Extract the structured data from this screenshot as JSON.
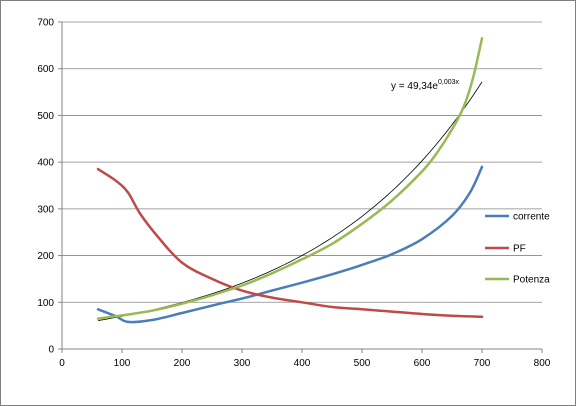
{
  "chart_data": {
    "type": "line",
    "title": "",
    "xlabel": "",
    "ylabel": "",
    "xlim": [
      0,
      800
    ],
    "ylim": [
      0,
      700
    ],
    "x_ticks": [
      "0",
      "100",
      "200",
      "300",
      "400",
      "500",
      "600",
      "700",
      "800"
    ],
    "y_ticks": [
      "0",
      "100",
      "200",
      "300",
      "400",
      "500",
      "600",
      "700"
    ],
    "grid": "horizontal",
    "legend_position": "right",
    "series": [
      {
        "name": "corrente",
        "color": "#4a7ebb",
        "points": [
          [
            60,
            85
          ],
          [
            90,
            70
          ],
          [
            110,
            58
          ],
          [
            150,
            62
          ],
          [
            200,
            77
          ],
          [
            250,
            93
          ],
          [
            300,
            108
          ],
          [
            350,
            125
          ],
          [
            400,
            142
          ],
          [
            450,
            160
          ],
          [
            500,
            180
          ],
          [
            550,
            203
          ],
          [
            600,
            235
          ],
          [
            650,
            285
          ],
          [
            680,
            335
          ],
          [
            700,
            390
          ]
        ]
      },
      {
        "name": "PF",
        "color": "#be4b48",
        "points": [
          [
            60,
            385
          ],
          [
            90,
            360
          ],
          [
            110,
            335
          ],
          [
            130,
            290
          ],
          [
            160,
            240
          ],
          [
            200,
            185
          ],
          [
            250,
            150
          ],
          [
            300,
            125
          ],
          [
            350,
            110
          ],
          [
            400,
            100
          ],
          [
            450,
            90
          ],
          [
            500,
            85
          ],
          [
            550,
            80
          ],
          [
            600,
            75
          ],
          [
            650,
            71
          ],
          [
            700,
            69
          ]
        ]
      },
      {
        "name": "Potenza",
        "color": "#98b954",
        "points": [
          [
            60,
            65
          ],
          [
            100,
            72
          ],
          [
            150,
            82
          ],
          [
            200,
            97
          ],
          [
            250,
            115
          ],
          [
            300,
            136
          ],
          [
            350,
            162
          ],
          [
            400,
            192
          ],
          [
            450,
            225
          ],
          [
            500,
            268
          ],
          [
            550,
            318
          ],
          [
            600,
            380
          ],
          [
            625,
            420
          ],
          [
            650,
            470
          ],
          [
            670,
            520
          ],
          [
            685,
            580
          ],
          [
            700,
            665
          ]
        ]
      }
    ],
    "trendline": {
      "series": "Potenza",
      "type": "exponential",
      "equation_text": "y = 49,34e",
      "equation_exponent": "0,003x",
      "color": "#000000",
      "a": 49.34,
      "b": 0.0035,
      "x_range": [
        60,
        700
      ]
    }
  }
}
